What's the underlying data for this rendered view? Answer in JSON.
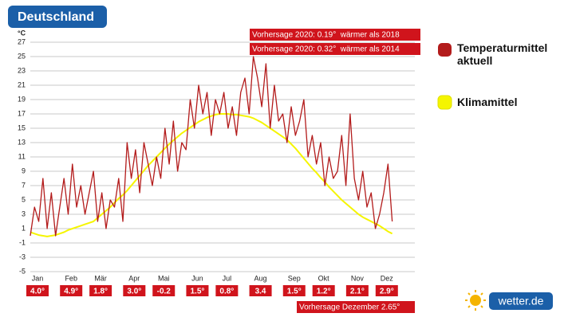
{
  "chart_data": {
    "type": "line",
    "title": "Deutschland",
    "y_unit": "°C",
    "categories": [
      "Jan",
      null,
      null,
      null,
      null,
      null,
      null,
      null,
      "Feb",
      null,
      null,
      null,
      null,
      null,
      null,
      "Mär",
      null,
      null,
      null,
      null,
      null,
      null,
      null,
      "Apr",
      null,
      null,
      null,
      null,
      null,
      null,
      "Mai",
      null,
      null,
      null,
      null,
      null,
      null,
      null,
      "Jun",
      null,
      null,
      null,
      null,
      null,
      null,
      "Jul",
      null,
      null,
      null,
      null,
      null,
      null,
      null,
      "Aug",
      null,
      null,
      null,
      null,
      null,
      null,
      null,
      "Sep",
      null,
      null,
      null,
      null,
      null,
      null,
      "Okt",
      null,
      null,
      null,
      null,
      null,
      null,
      null,
      "Nov",
      null,
      null,
      null,
      null,
      null,
      null,
      "Dez",
      null,
      null,
      null,
      null,
      null,
      null,
      null,
      null
    ],
    "series": [
      {
        "name": "Temperaturmittel aktuell",
        "color": "#b31b1b",
        "values": [
          0,
          4,
          2,
          8,
          1,
          6,
          0,
          4,
          8,
          3,
          10,
          4,
          7,
          3,
          6,
          9,
          2,
          6,
          1,
          5,
          4,
          8,
          2,
          13,
          8,
          12,
          6,
          13,
          10,
          7,
          11,
          8,
          15,
          10,
          16,
          9,
          13,
          12,
          19,
          15,
          21,
          17,
          20,
          14,
          19,
          17,
          20,
          15,
          18,
          14,
          20,
          22,
          17,
          25,
          22,
          18,
          24,
          15,
          21,
          16,
          17,
          13,
          18,
          14,
          16,
          19,
          11,
          14,
          10,
          13,
          7,
          11,
          8,
          9,
          14,
          7,
          17,
          8,
          5,
          9,
          4,
          6,
          1,
          3,
          6,
          10,
          2,
          null,
          null,
          null,
          null,
          null
        ]
      },
      {
        "name": "Klimamittel",
        "color": "#f5f500",
        "values": [
          0.5,
          0.3,
          0.1,
          0,
          -0.1,
          0,
          0.1,
          0.3,
          0.5,
          0.8,
          1.0,
          1.2,
          1.4,
          1.6,
          1.8,
          2.0,
          2.5,
          3.0,
          3.5,
          4.0,
          4.6,
          5.2,
          5.7,
          6.3,
          7.0,
          7.7,
          8.4,
          9.1,
          9.8,
          10.4,
          11.0,
          11.6,
          12.2,
          12.8,
          13.3,
          13.8,
          14.3,
          14.7,
          15.1,
          15.5,
          15.9,
          16.2,
          16.5,
          16.7,
          16.9,
          17.0,
          17.0,
          17.0,
          16.9,
          16.9,
          16.8,
          16.7,
          16.6,
          16.4,
          16.1,
          15.8,
          15.4,
          15.0,
          14.6,
          14.2,
          13.8,
          13.4,
          12.8,
          12.2,
          11.5,
          10.8,
          10.1,
          9.4,
          8.8,
          8.1,
          7.5,
          6.8,
          6.2,
          5.6,
          5.0,
          4.5,
          4.0,
          3.5,
          3.0,
          2.6,
          2.3,
          2.0,
          1.7,
          1.4,
          1.0,
          0.6,
          0.3,
          null,
          null,
          null,
          null,
          null
        ]
      }
    ],
    "month_values": [
      "4.0°",
      "4.9°",
      "1.8°",
      "3.0°",
      "-0.2",
      "1.5°",
      "0.8°",
      "3.4",
      "1.5°",
      "1.2°",
      "2.1°",
      "2.9°"
    ],
    "annotations": [
      "Vorhersage 2020: 0.19°  wärmer als 2018",
      "Vorhersage 2020: 0.32°  wärmer als 2014",
      "Vorhersage Dezember 2.65°"
    ],
    "brand": "wetter.de",
    "ylim": [
      -5,
      27
    ],
    "yticks": [
      -5,
      -3,
      -1,
      1,
      3,
      5,
      7,
      9,
      11,
      13,
      15,
      17,
      19,
      21,
      23,
      25,
      27
    ],
    "grid": true
  }
}
